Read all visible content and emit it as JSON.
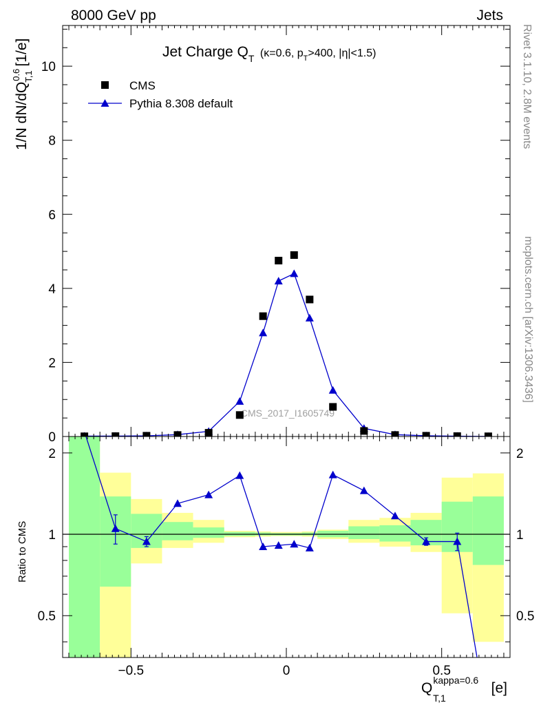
{
  "header": {
    "left": "8000 GeV pp",
    "right": "Jets"
  },
  "side_labels": {
    "rivet": "Rivet 3.1.10,  2.8M events",
    "mcplots": "mcplots.cern.ch [arXiv:1306.3436]"
  },
  "watermark": "CMS_2017_I1605749",
  "colors": {
    "pythia": "#0000cc",
    "cms": "#000000",
    "band_inner": "#99ff99",
    "band_outer": "#ffff99"
  },
  "chart_data": [
    {
      "type": "scatter",
      "panel": "main",
      "title_main": "Jet Charge Q",
      "title_sub": "T",
      "title_cond": "(κ=0.6, p",
      "title_cond_sub": "T",
      "title_cond_rest": ">400, |η|<1.5)",
      "ylabel": "1/N dN/dQ",
      "ylabel_sup": "0.6",
      "ylabel_sub": "T,1",
      "ylabel_unit": " [1/e]",
      "ylim": [
        0,
        11.1
      ],
      "xlim": [
        -0.72,
        0.72
      ],
      "yticks": [
        0,
        2,
        4,
        6,
        8,
        10
      ],
      "ytick_labels": [
        "0",
        "2",
        "4",
        "6",
        "8",
        "10"
      ],
      "legend_position": "top-left",
      "series": [
        {
          "name": "CMS",
          "marker": "square",
          "x": [
            -0.65,
            -0.55,
            -0.45,
            -0.35,
            -0.25,
            -0.15,
            -0.075,
            -0.025,
            0.025,
            0.075,
            0.15,
            0.25,
            0.35,
            0.45,
            0.55,
            0.65
          ],
          "y": [
            0.005,
            0.01,
            0.02,
            0.04,
            0.1,
            0.58,
            3.25,
            4.75,
            4.9,
            3.7,
            0.8,
            0.15,
            0.04,
            0.02,
            0.01,
            0.005
          ]
        },
        {
          "name": "Pythia 8.308 default",
          "marker": "triangle",
          "x": [
            -0.65,
            -0.55,
            -0.45,
            -0.35,
            -0.25,
            -0.15,
            -0.075,
            -0.025,
            0.025,
            0.075,
            0.15,
            0.25,
            0.35,
            0.45,
            0.55,
            0.65
          ],
          "y": [
            0.012,
            0.01,
            0.018,
            0.05,
            0.14,
            0.95,
            2.8,
            4.2,
            4.4,
            3.2,
            1.25,
            0.22,
            0.05,
            0.02,
            0.009,
            0.001
          ]
        }
      ]
    },
    {
      "type": "line",
      "panel": "ratio",
      "ylabel": "Ratio to CMS",
      "xlabel": "Q",
      "xlabel_sup": "kappa=0.6",
      "xlabel_sub": "T,1",
      "xlabel_unit": " [e]",
      "xlim": [
        -0.72,
        0.72
      ],
      "ylim": [
        0.35,
        2.3
      ],
      "xticks": [
        -0.5,
        0,
        0.5
      ],
      "xtick_labels": [
        "−0.5",
        "0",
        "0.5"
      ],
      "yticks": [
        0.5,
        1,
        2
      ],
      "ytick_labels": [
        "0.5",
        "1",
        "2"
      ],
      "bands": [
        {
          "x0": -0.7,
          "x1": -0.6,
          "inner": [
            0.35,
            2.3
          ],
          "outer": [
            0.35,
            2.3
          ]
        },
        {
          "x0": -0.6,
          "x1": -0.5,
          "inner": [
            0.64,
            1.38
          ],
          "outer": [
            0.35,
            1.69
          ]
        },
        {
          "x0": -0.5,
          "x1": -0.4,
          "inner": [
            0.89,
            1.19
          ],
          "outer": [
            0.78,
            1.35
          ]
        },
        {
          "x0": -0.4,
          "x1": -0.3,
          "inner": [
            0.95,
            1.11
          ],
          "outer": [
            0.89,
            1.2
          ]
        },
        {
          "x0": -0.3,
          "x1": -0.2,
          "inner": [
            0.97,
            1.06
          ],
          "outer": [
            0.93,
            1.13
          ]
        },
        {
          "x0": -0.2,
          "x1": -0.1,
          "inner": [
            0.985,
            1.02
          ],
          "outer": [
            0.975,
            1.03
          ]
        },
        {
          "x0": -0.1,
          "x1": -0.05,
          "inner": [
            0.99,
            1.015
          ],
          "outer": [
            0.98,
            1.025
          ]
        },
        {
          "x0": -0.05,
          "x1": 0.0,
          "inner": [
            0.99,
            1.01
          ],
          "outer": [
            0.985,
            1.02
          ]
        },
        {
          "x0": 0.0,
          "x1": 0.05,
          "inner": [
            0.99,
            1.01
          ],
          "outer": [
            0.985,
            1.02
          ]
        },
        {
          "x0": 0.05,
          "x1": 0.1,
          "inner": [
            0.99,
            1.015
          ],
          "outer": [
            0.98,
            1.025
          ]
        },
        {
          "x0": 0.1,
          "x1": 0.2,
          "inner": [
            0.975,
            1.03
          ],
          "outer": [
            0.96,
            1.04
          ]
        },
        {
          "x0": 0.2,
          "x1": 0.3,
          "inner": [
            0.96,
            1.07
          ],
          "outer": [
            0.93,
            1.13
          ]
        },
        {
          "x0": 0.3,
          "x1": 0.4,
          "inner": [
            0.94,
            1.08
          ],
          "outer": [
            0.9,
            1.15
          ]
        },
        {
          "x0": 0.4,
          "x1": 0.5,
          "inner": [
            0.91,
            1.13
          ],
          "outer": [
            0.86,
            1.2
          ]
        },
        {
          "x0": 0.5,
          "x1": 0.6,
          "inner": [
            0.86,
            1.32
          ],
          "outer": [
            0.51,
            1.62
          ]
        },
        {
          "x0": 0.6,
          "x1": 0.7,
          "inner": [
            0.77,
            1.38
          ],
          "outer": [
            0.4,
            1.68
          ]
        }
      ],
      "series": [
        {
          "name": "Pythia 8.308 default",
          "x": [
            -0.65,
            -0.55,
            -0.45,
            -0.35,
            -0.25,
            -0.15,
            -0.075,
            -0.025,
            0.025,
            0.075,
            0.15,
            0.25,
            0.35,
            0.45,
            0.55,
            0.65
          ],
          "y": [
            2.4,
            1.05,
            0.94,
            1.3,
            1.4,
            1.65,
            0.9,
            0.91,
            0.92,
            0.89,
            1.66,
            1.45,
            1.17,
            0.94,
            0.94,
            0.2
          ],
          "yerr": [
            0,
            0.13,
            0.04,
            0,
            0,
            0,
            0,
            0,
            0,
            0,
            0,
            0,
            0,
            0.03,
            0.07,
            0
          ]
        }
      ]
    }
  ]
}
